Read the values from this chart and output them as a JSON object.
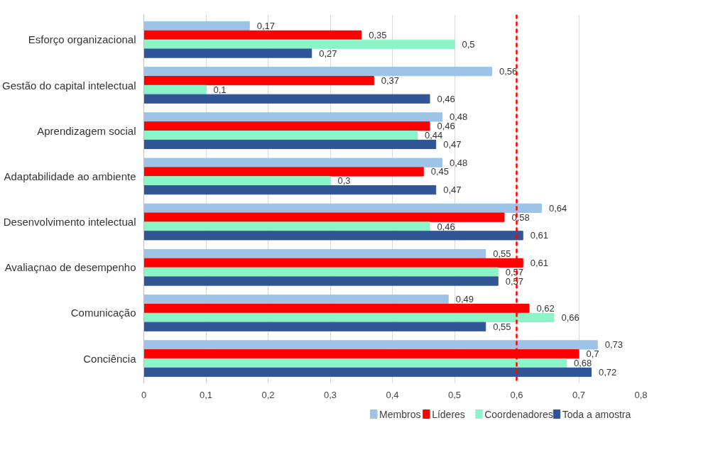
{
  "chart_data": {
    "type": "bar",
    "orientation": "horizontal",
    "categories": [
      "Esforço organizacional",
      "Gestão do capital intelectual",
      "Aprendizagem social",
      "Adaptabilidade ao ambiente",
      "Desenvolvimento intelectual",
      "Avaliaçnao de desempenho",
      "Comunicação",
      "Conciência"
    ],
    "series": [
      {
        "name": "Membros",
        "color": "#9dc3e6",
        "values": [
          0.17,
          0.56,
          0.48,
          0.48,
          0.64,
          0.55,
          0.49,
          0.73
        ],
        "value_labels": [
          "0,17",
          "0,56",
          "0,48",
          "0,48",
          "0,64",
          "0,55",
          "0,49",
          "0,73"
        ]
      },
      {
        "name": "Líderes",
        "color": "#ff0000",
        "values": [
          0.35,
          0.37,
          0.46,
          0.45,
          0.58,
          0.61,
          0.62,
          0.7
        ],
        "value_labels": [
          "0,35",
          "0,37",
          "0,46",
          "0,45",
          "0,58",
          "0,61",
          "0,62",
          "0,7"
        ]
      },
      {
        "name": "Coordenadores",
        "color": "#8cf5c8",
        "values": [
          0.5,
          0.1,
          0.44,
          0.3,
          0.46,
          0.57,
          0.66,
          0.68
        ],
        "value_labels": [
          "0,5",
          "0,1",
          "0,44",
          "0,3",
          "0,46",
          "0,57",
          "0,66",
          "0,68"
        ]
      },
      {
        "name": "Toda a amostra",
        "color": "#2f5597",
        "values": [
          0.27,
          0.46,
          0.47,
          0.47,
          0.61,
          0.57,
          0.55,
          0.72
        ],
        "value_labels": [
          "0,27",
          "0,46",
          "0,47",
          "0,47",
          "0,61",
          "0,57",
          "0,55",
          "0,72"
        ]
      }
    ],
    "xlim": [
      0,
      0.8
    ],
    "xticks": [
      0,
      {
        "value": 0.1,
        "label": "0,1"
      },
      {
        "value": 0.2,
        "label": "0,2"
      },
      {
        "value": 0.3,
        "label": "0,3"
      },
      {
        "value": 0.4,
        "label": "0,4"
      },
      {
        "value": 0.5,
        "label": "0,5"
      },
      {
        "value": 0.6,
        "label": "0,6"
      },
      {
        "value": 0.7,
        "label": "0,7"
      },
      {
        "value": 0.8,
        "label": "0,8"
      }
    ],
    "ref_lines": [
      {
        "axis": "x",
        "value": 0.6,
        "color": "#ff0000",
        "line_style": "dashed"
      }
    ],
    "grid": "x",
    "legend": "bottom"
  }
}
